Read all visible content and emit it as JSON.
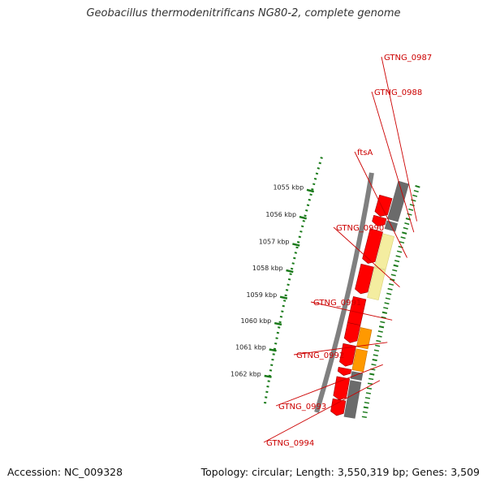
{
  "title": "Geobacillus thermodenitrificans NG80-2, complete genome",
  "footer": {
    "accession": "Accession: NC_009328",
    "summary": "Topology: circular; Length: 3,550,319 bp; Genes: 3,509"
  },
  "ticks": [
    {
      "label": "1055 kbp"
    },
    {
      "label": "1056 kbp"
    },
    {
      "label": "1057 kbp"
    },
    {
      "label": "1058 kbp"
    },
    {
      "label": "1059 kbp"
    },
    {
      "label": "1060 kbp"
    },
    {
      "label": "1061 kbp"
    },
    {
      "label": "1062 kbp"
    }
  ],
  "gene_labels": [
    "GTNG_0987",
    "GTNG_0988",
    "ftsA",
    "GTNG_0990",
    "GTNG_0991",
    "GTNG_0992",
    "GTNG_0993",
    "GTNG_0994"
  ],
  "colors": {
    "cds": "#ff0000",
    "cds_edge": "#990000",
    "backbone": "#808080",
    "gray_feature": "#6b6b6b",
    "pale_feature": "#f4eda0",
    "orange_feature": "#ff9900",
    "tick": "#1a7a1a",
    "label": "#cc0000"
  }
}
